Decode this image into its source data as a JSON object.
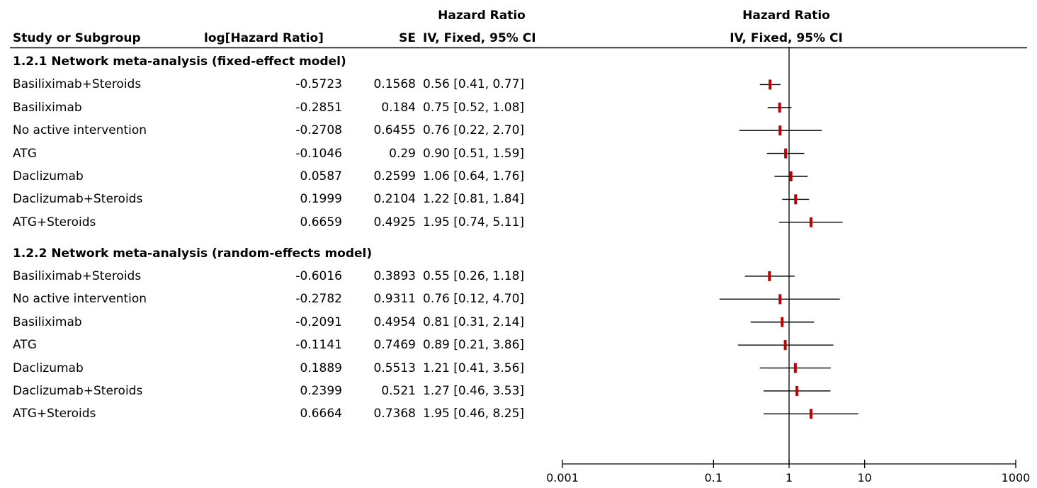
{
  "chart_data": {
    "type": "forest",
    "header": {
      "col_study": "Study or Subgroup",
      "col_loghr": "log[Hazard Ratio]",
      "col_se": "SE",
      "col_ci_title": "Hazard Ratio",
      "col_ci_sub": "IV, Fixed, 95% CI",
      "plot_title": "Hazard Ratio",
      "plot_sub": "IV, Fixed, 95% CI"
    },
    "x_scale": "log",
    "xlim": [
      0.001,
      1000
    ],
    "x_ticks": [
      {
        "value": 0.001,
        "label": "0.001"
      },
      {
        "value": 0.1,
        "label": "0.1"
      },
      {
        "value": 1,
        "label": "1"
      },
      {
        "value": 10,
        "label": "10"
      },
      {
        "value": 1000,
        "label": "1000"
      }
    ],
    "reference_line": 1,
    "marker_color": "#c00000",
    "groups": [
      {
        "title": "1.2.1 Network meta-analysis (fixed-effect model)",
        "rows": [
          {
            "study": "Basiliximab+Steroids",
            "loghr": "-0.5723",
            "se": "0.1568",
            "ci": "0.56 [0.41, 0.77]",
            "hr": 0.56,
            "lo": 0.41,
            "hi": 0.77
          },
          {
            "study": "Basiliximab",
            "loghr": "-0.2851",
            "se": "0.184",
            "ci": "0.75 [0.52, 1.08]",
            "hr": 0.75,
            "lo": 0.52,
            "hi": 1.08
          },
          {
            "study": "No active intervention",
            "loghr": "-0.2708",
            "se": "0.6455",
            "ci": "0.76 [0.22, 2.70]",
            "hr": 0.76,
            "lo": 0.22,
            "hi": 2.7
          },
          {
            "study": "ATG",
            "loghr": "-0.1046",
            "se": "0.29",
            "ci": "0.90 [0.51, 1.59]",
            "hr": 0.9,
            "lo": 0.51,
            "hi": 1.59
          },
          {
            "study": "Daclizumab",
            "loghr": "0.0587",
            "se": "0.2599",
            "ci": "1.06 [0.64, 1.76]",
            "hr": 1.06,
            "lo": 0.64,
            "hi": 1.76
          },
          {
            "study": "Daclizumab+Steroids",
            "loghr": "0.1999",
            "se": "0.2104",
            "ci": "1.22 [0.81, 1.84]",
            "hr": 1.22,
            "lo": 0.81,
            "hi": 1.84
          },
          {
            "study": "ATG+Steroids",
            "loghr": "0.6659",
            "se": "0.4925",
            "ci": "1.95 [0.74, 5.11]",
            "hr": 1.95,
            "lo": 0.74,
            "hi": 5.11
          }
        ]
      },
      {
        "title": "1.2.2 Network meta-analysis (random-effects model)",
        "rows": [
          {
            "study": "Basiliximab+Steroids",
            "loghr": "-0.6016",
            "se": "0.3893",
            "ci": "0.55 [0.26, 1.18]",
            "hr": 0.55,
            "lo": 0.26,
            "hi": 1.18
          },
          {
            "study": "No active intervention",
            "loghr": "-0.2782",
            "se": "0.9311",
            "ci": "0.76 [0.12, 4.70]",
            "hr": 0.76,
            "lo": 0.12,
            "hi": 4.7
          },
          {
            "study": "Basiliximab",
            "loghr": "-0.2091",
            "se": "0.4954",
            "ci": "0.81 [0.31, 2.14]",
            "hr": 0.81,
            "lo": 0.31,
            "hi": 2.14
          },
          {
            "study": "ATG",
            "loghr": "-0.1141",
            "se": "0.7469",
            "ci": "0.89 [0.21, 3.86]",
            "hr": 0.89,
            "lo": 0.21,
            "hi": 3.86
          },
          {
            "study": "Daclizumab",
            "loghr": "0.1889",
            "se": "0.5513",
            "ci": "1.21 [0.41, 3.56]",
            "hr": 1.21,
            "lo": 0.41,
            "hi": 3.56
          },
          {
            "study": "Daclizumab+Steroids",
            "loghr": "0.2399",
            "se": "0.521",
            "ci": "1.27 [0.46, 3.53]",
            "hr": 1.27,
            "lo": 0.46,
            "hi": 3.53
          },
          {
            "study": "ATG+Steroids",
            "loghr": "0.6664",
            "se": "0.7368",
            "ci": "1.95 [0.46, 8.25]",
            "hr": 1.95,
            "lo": 0.46,
            "hi": 8.25
          }
        ]
      }
    ]
  }
}
